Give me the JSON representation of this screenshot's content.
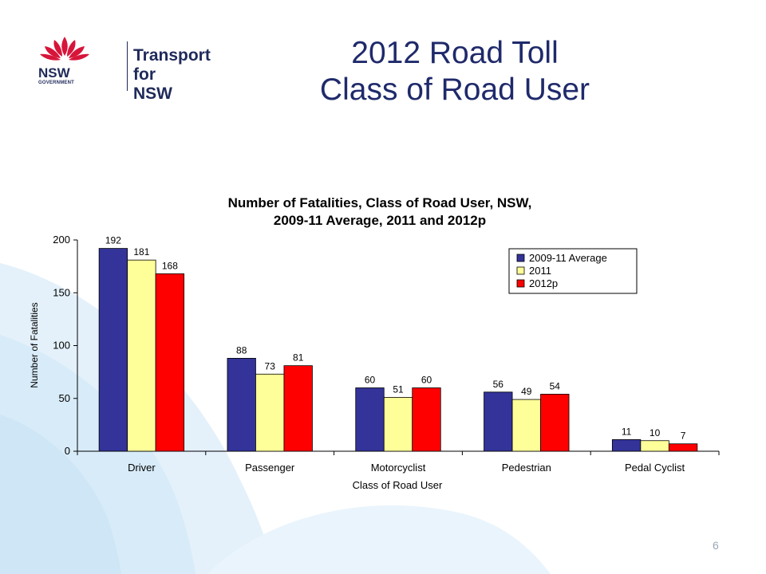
{
  "slide": {
    "title_line1": "2012 Road Toll",
    "title_line2": "Class of Road User",
    "page_number": "6"
  },
  "logo": {
    "brand_line1": "Transport",
    "brand_line2": "for NSW",
    "nsw": "NSW",
    "government": "GOVERNMENT"
  },
  "colors": {
    "series_2009_11": "#333399",
    "series_2011": "#ffff99",
    "series_2012p": "#ff0000",
    "title_blue": "#1f2a6b",
    "bg_swirl": "#ddeefa"
  },
  "chart_data": {
    "type": "bar",
    "title_line1": "Number of Fatalities, Class of Road User, NSW,",
    "title_line2": "2009-11 Average, 2011 and 2012p",
    "xlabel": "Class of Road User",
    "ylabel": "Number of Fatalities",
    "categories": [
      "Driver",
      "Passenger",
      "Motorcyclist",
      "Pedestrian",
      "Pedal Cyclist"
    ],
    "series": [
      {
        "name": "2009-11 Average",
        "color": "#333399",
        "values": [
          192,
          88,
          60,
          56,
          11
        ]
      },
      {
        "name": "2011",
        "color": "#ffff99",
        "values": [
          181,
          73,
          51,
          49,
          10
        ]
      },
      {
        "name": "2012p",
        "color": "#ff0000",
        "values": [
          168,
          81,
          60,
          54,
          7
        ]
      }
    ],
    "ylim": [
      0,
      200
    ],
    "yticks": [
      0,
      50,
      100,
      150,
      200
    ],
    "legend_position": "top-right",
    "grid": false
  }
}
